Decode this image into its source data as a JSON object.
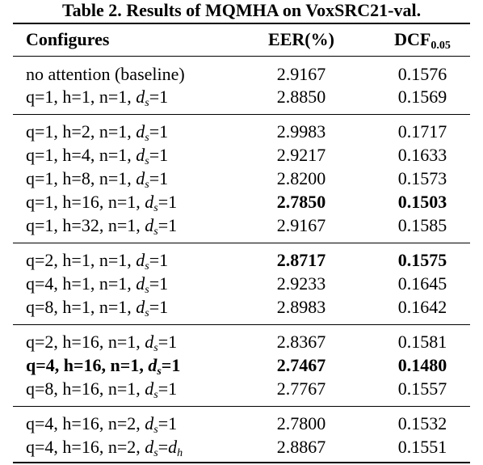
{
  "caption": "Table 2. Results of MQMHA on VoxSRC21-val.",
  "header": {
    "configures": "Configures",
    "eer": "EER(%)",
    "dcf": "DCF",
    "dcf_sub": "0.05"
  },
  "groups": [
    [
      {
        "label": "no attention (baseline)",
        "eer": "2.9167",
        "dcf": "0.1576"
      },
      {
        "label": "q=1, h=1, n=1, ",
        "ds": "1",
        "eer": "2.8850",
        "dcf": "0.1569"
      }
    ],
    [
      {
        "label": "q=1, h=2, n=1, ",
        "ds": "1",
        "eer": "2.9983",
        "dcf": "0.1717"
      },
      {
        "label": "q=1, h=4, n=1, ",
        "ds": "1",
        "eer": "2.9217",
        "dcf": "0.1633"
      },
      {
        "label": "q=1, h=8, n=1, ",
        "ds": "1",
        "eer": "2.8200",
        "dcf": "0.1573"
      },
      {
        "label": "q=1, h=16, n=1, ",
        "ds": "1",
        "eer": "2.7850",
        "dcf": "0.1503",
        "bold_values": true
      },
      {
        "label": "q=1, h=32, n=1, ",
        "ds": "1",
        "eer": "2.9167",
        "dcf": "0.1585"
      }
    ],
    [
      {
        "label": "q=2, h=1, n=1, ",
        "ds": "1",
        "eer": "2.8717",
        "dcf": "0.1575",
        "bold_values": true
      },
      {
        "label": "q=4, h=1, n=1, ",
        "ds": "1",
        "eer": "2.9233",
        "dcf": "0.1645"
      },
      {
        "label": "q=8, h=1, n=1, ",
        "ds": "1",
        "eer": "2.8983",
        "dcf": "0.1642"
      }
    ],
    [
      {
        "label": "q=2, h=16, n=1, ",
        "ds": "1",
        "eer": "2.8367",
        "dcf": "0.1581"
      },
      {
        "label": "q=4, h=16, n=1, ",
        "ds": "1",
        "eer": "2.7467",
        "dcf": "0.1480",
        "bold_all": true
      },
      {
        "label": "q=8, h=16, n=1, ",
        "ds": "1",
        "eer": "2.7767",
        "dcf": "0.1557"
      }
    ],
    [
      {
        "label": "q=4, h=16, n=2, ",
        "ds": "1",
        "eer": "2.7800",
        "dcf": "0.1532"
      },
      {
        "label": "q=4, h=16, n=2, ",
        "ds": "d_h",
        "eer": "2.8867",
        "dcf": "0.1551"
      }
    ]
  ]
}
